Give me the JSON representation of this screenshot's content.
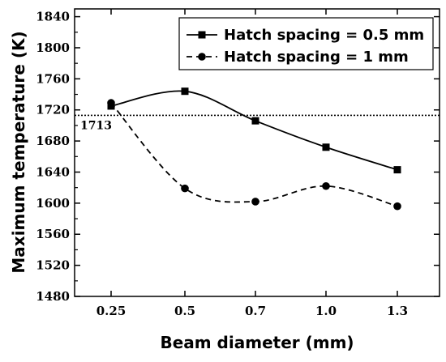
{
  "chart_data": {
    "type": "line",
    "categories": [
      "0.25",
      "0.5",
      "0.7",
      "1.0",
      "1.3"
    ],
    "xlabel": "Beam diameter (mm)",
    "ylabel": "Maximum temperature (K)",
    "ylim": [
      1480,
      1850
    ],
    "yticks": [
      "1480",
      "1520",
      "1560",
      "1600",
      "1640",
      "1680",
      "1720",
      "1760",
      "1800",
      "1840"
    ],
    "legend_position": "top-right",
    "grid": false,
    "series": [
      {
        "name": "Hatch spacing = 0.5 mm",
        "marker": "square",
        "line_style": "solid",
        "values": [
          1725,
          1744,
          1706,
          1672,
          1643
        ]
      },
      {
        "name": "Hatch spacing = 1 mm",
        "marker": "circle",
        "line_style": "dashed",
        "values": [
          1729,
          1619,
          1602,
          1622,
          1596
        ]
      }
    ],
    "reference_line": {
      "value": 1713,
      "label": "1713",
      "style": "dotted"
    },
    "colors": {
      "series": "#000000",
      "axis": "#000000"
    }
  }
}
